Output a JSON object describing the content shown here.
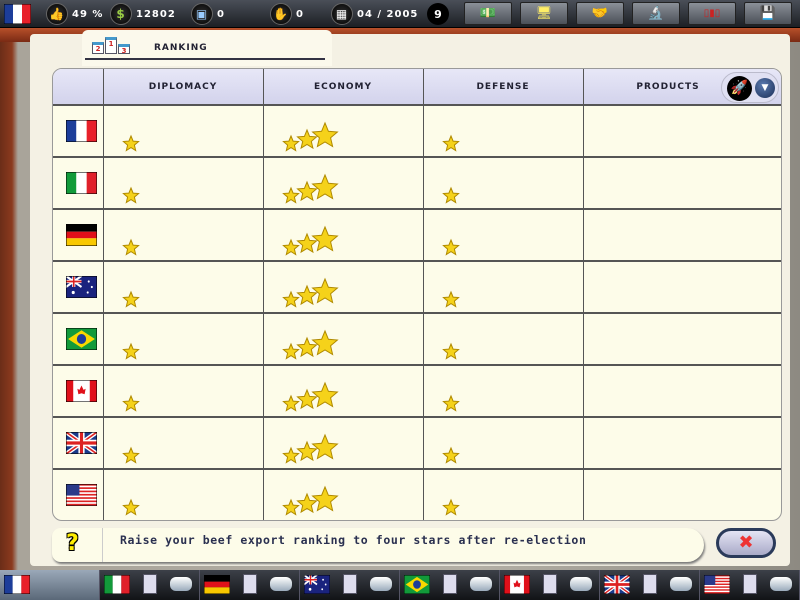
{
  "topbar": {
    "player_flag": "FR",
    "approval": "49 %",
    "money": "12802",
    "treasury": "0",
    "deals": "0",
    "date": "04 / 2005",
    "turns_left": "9",
    "buttons": [
      {
        "name": "finance-button",
        "icon": "money-coins-icon"
      },
      {
        "name": "trade-button",
        "icon": "computer-trade-icon"
      },
      {
        "name": "diplomacy-button",
        "icon": "handshake-icon"
      },
      {
        "name": "research-button",
        "icon": "microscope-icon"
      },
      {
        "name": "ranking-button",
        "icon": "podium-icon"
      },
      {
        "name": "save-button",
        "icon": "floppy-disk-icon"
      }
    ]
  },
  "panel": {
    "title": "RANKING",
    "icon": "podium-icon",
    "podium": [
      "2",
      "1",
      "3"
    ]
  },
  "table": {
    "columns": [
      "DIPLOMACY",
      "ECONOMY",
      "DEFENSE",
      "PRODUCTS"
    ],
    "product_selector": {
      "icon": "rocket-icon",
      "dropdown_icon": "chevron-down-icon"
    },
    "rows": [
      {
        "country": "France",
        "flag": "FR",
        "diplomacy": 1,
        "economy": 3,
        "defense": 1,
        "products": 0
      },
      {
        "country": "Italy",
        "flag": "IT",
        "diplomacy": 1,
        "economy": 3,
        "defense": 1,
        "products": 0
      },
      {
        "country": "Germany",
        "flag": "DE",
        "diplomacy": 1,
        "economy": 3,
        "defense": 1,
        "products": 0
      },
      {
        "country": "Australia",
        "flag": "AU",
        "diplomacy": 1,
        "economy": 3,
        "defense": 1,
        "products": 0
      },
      {
        "country": "Brazil",
        "flag": "BR",
        "diplomacy": 1,
        "economy": 3,
        "defense": 1,
        "products": 0
      },
      {
        "country": "Canada",
        "flag": "CA",
        "diplomacy": 1,
        "economy": 3,
        "defense": 1,
        "products": 0
      },
      {
        "country": "United Kingdom",
        "flag": "GB",
        "diplomacy": 1,
        "economy": 3,
        "defense": 1,
        "products": 0
      },
      {
        "country": "United States",
        "flag": "US",
        "diplomacy": 1,
        "economy": 3,
        "defense": 1,
        "products": 0
      }
    ]
  },
  "hint": {
    "icon": "question-icon",
    "text": "Raise your beef export ranking to four stars after re-election"
  },
  "close_icon": "close-icon",
  "bottombar": {
    "countries": [
      "FR",
      "IT",
      "DE",
      "AU",
      "BR",
      "CA",
      "GB",
      "US"
    ]
  },
  "colors": {
    "star": "#f5d21a",
    "header": "#dcdcf0",
    "paper": "#fdfce9",
    "text": "#2a3050"
  }
}
